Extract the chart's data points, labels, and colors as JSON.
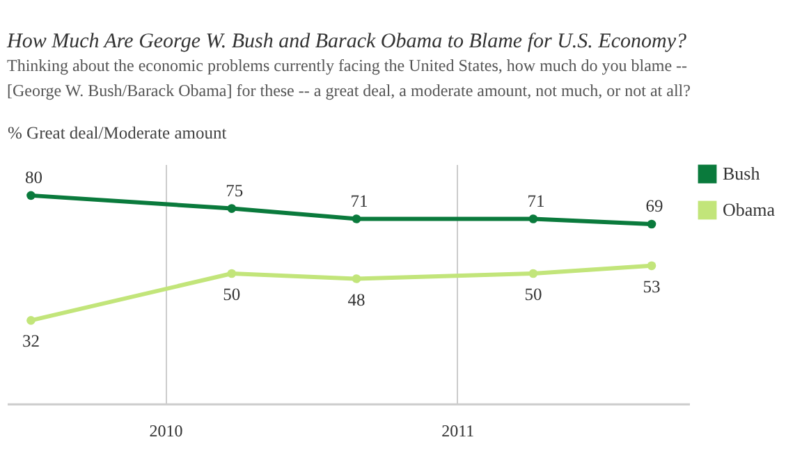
{
  "chart_data": {
    "type": "line",
    "title": "How Much Are George W. Bush and Barack Obama to Blame for U.S. Economy?",
    "subtitle": "Thinking about the economic problems currently facing the United States, how much do you blame -- [George W. Bush/Barack Obama] for these -- a great deal, a moderate amount, not much, or not at all?",
    "ylabel": "% Great deal/Moderate amount",
    "x": [
      "2009-07-17",
      "2010-03-25",
      "2010-08-28",
      "2011-04-06",
      "2011-09-01"
    ],
    "series": [
      {
        "name": "Bush",
        "color": "#0a7a3c",
        "values": [
          80,
          75,
          71,
          71,
          69
        ]
      },
      {
        "name": "Obama",
        "color": "#c2e57a",
        "values": [
          32,
          50,
          48,
          50,
          53
        ]
      }
    ],
    "xlim": [
      "2009-06-17",
      "2011-10-18"
    ],
    "xticks": [
      {
        "value": "2010-01-01",
        "label": "2010"
      },
      {
        "value": "2011-01-01",
        "label": "2011"
      }
    ],
    "ylim": [
      0,
      92
    ],
    "tick_labels": "x",
    "grid": "x",
    "legend": "top right",
    "marker": "circle",
    "line_style": "solid",
    "data_labels": true
  }
}
